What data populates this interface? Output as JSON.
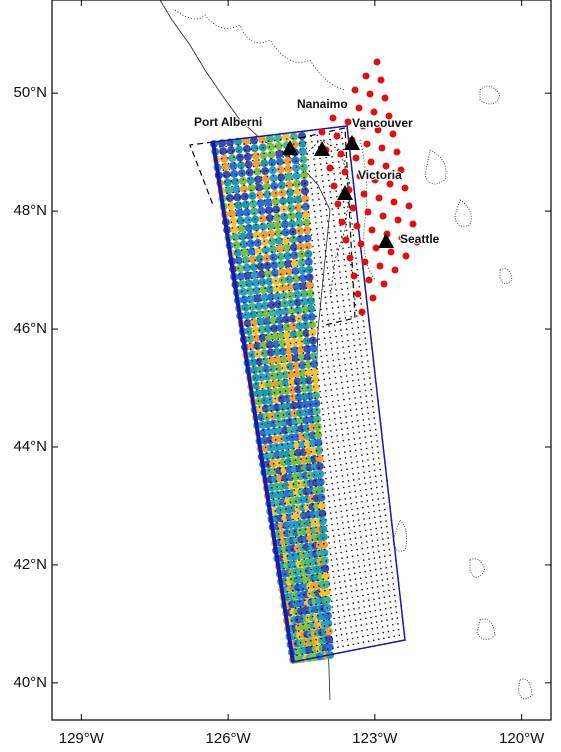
{
  "map": {
    "xaxis": {
      "range": [
        -129.6,
        -119.4
      ],
      "ticks": [
        {
          "value": -129,
          "label": "129°W"
        },
        {
          "value": -126,
          "label": "126°W"
        },
        {
          "value": -123,
          "label": "123°W"
        },
        {
          "value": -120,
          "label": "120°W"
        }
      ]
    },
    "yaxis": {
      "range": [
        39.37,
        51.58
      ],
      "ticks": [
        {
          "value": 40,
          "label": "40°N"
        },
        {
          "value": 42,
          "label": "42°N"
        },
        {
          "value": 44,
          "label": "44°N"
        },
        {
          "value": 46,
          "label": "46°N"
        },
        {
          "value": 48,
          "label": "48°N"
        },
        {
          "value": 50,
          "label": "50°N"
        }
      ]
    },
    "places": [
      {
        "label": "Nanaimo"
      },
      {
        "label": "Port Alberni"
      },
      {
        "label": "Vancouver"
      },
      {
        "label": "Victoria"
      },
      {
        "label": "Seattle"
      }
    ]
  }
}
